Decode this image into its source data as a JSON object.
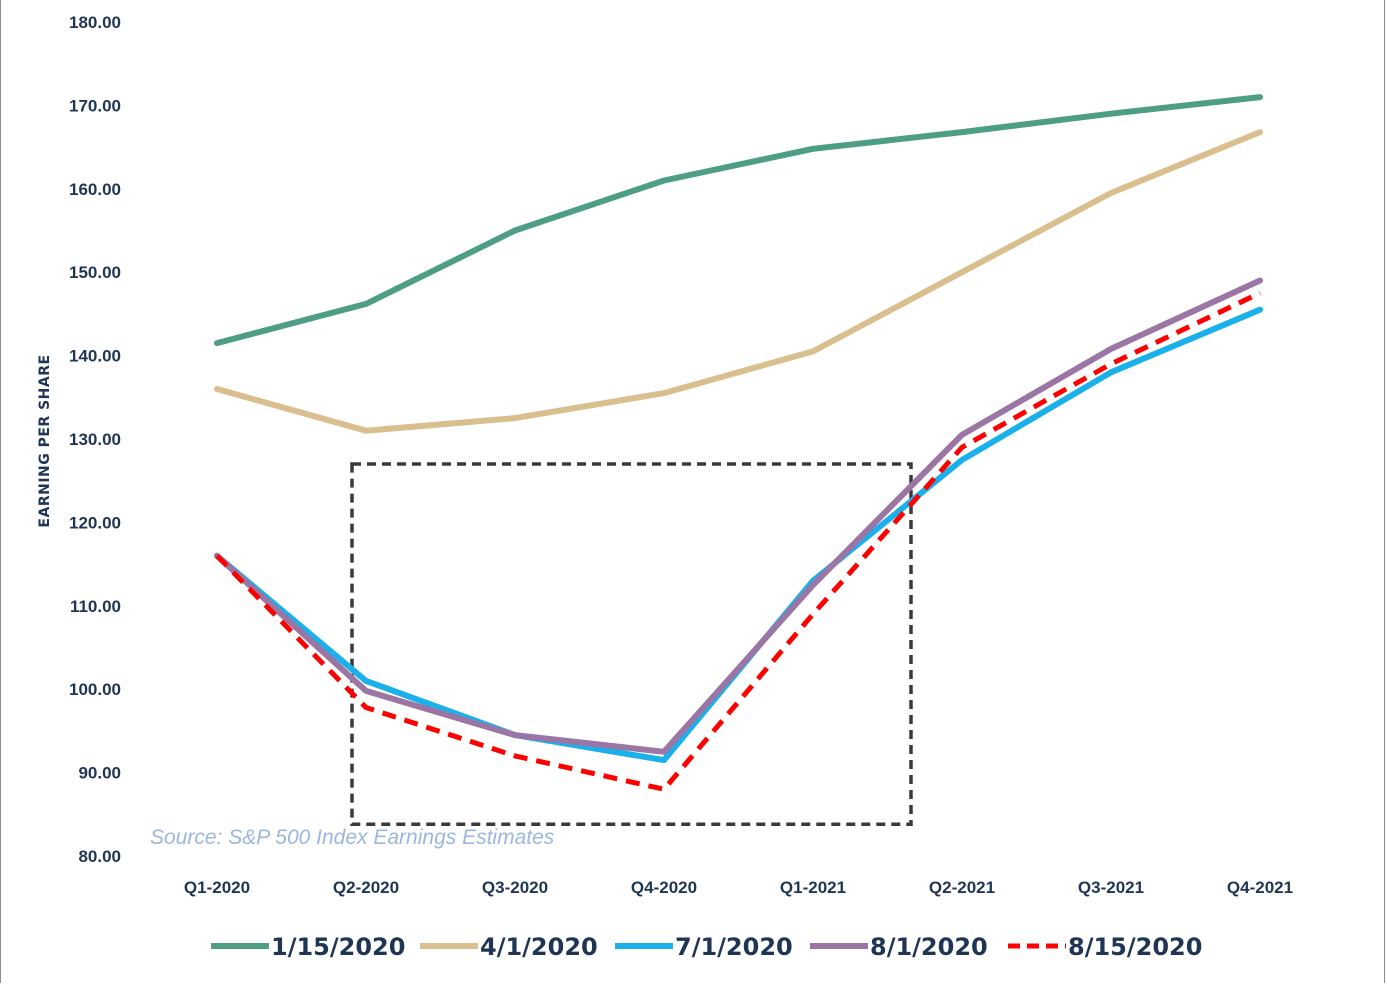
{
  "chart_data": {
    "type": "line",
    "title": "",
    "xlabel": "",
    "ylabel": "EARNING PER SHARE",
    "categories": [
      "Q1-2020",
      "Q2-2020",
      "Q3-2020",
      "Q4-2020",
      "Q1-2021",
      "Q2-2021",
      "Q3-2021",
      "Q4-2021"
    ],
    "yticks": [
      "80.00",
      "90.00",
      "100.00",
      "110.00",
      "120.00",
      "130.00",
      "140.00",
      "150.00",
      "160.00",
      "170.00",
      "180.00"
    ],
    "ylim": [
      80,
      180
    ],
    "grid": false,
    "legend_position": "bottom",
    "series": [
      {
        "name": "1/15/2020",
        "color": "#4e9e84",
        "dashed": false,
        "values": [
          141.5,
          146.2,
          155.0,
          161.0,
          164.8,
          166.8,
          169.0,
          171.0
        ]
      },
      {
        "name": "4/1/2020",
        "color": "#d9bf8e",
        "dashed": false,
        "values": [
          136.0,
          131.0,
          132.5,
          135.5,
          140.5,
          150.0,
          159.5,
          166.8
        ]
      },
      {
        "name": "7/1/2020",
        "color": "#1ab0ea",
        "dashed": false,
        "values": [
          116.0,
          101.0,
          94.5,
          91.5,
          113.0,
          127.5,
          138.0,
          145.5
        ]
      },
      {
        "name": "8/1/2020",
        "color": "#9b75a3",
        "dashed": false,
        "values": [
          116.0,
          99.8,
          94.5,
          92.5,
          112.5,
          130.5,
          140.8,
          149.0
        ]
      },
      {
        "name": "8/15/2020",
        "color": "#ff0000",
        "dashed": true,
        "values": [
          116.0,
          97.8,
          92.0,
          88.0,
          109.0,
          129.0,
          139.0,
          147.5
        ]
      }
    ],
    "annotations": [
      {
        "type": "dashed-box",
        "x_from": "Q2-2020",
        "x_to": "Q2-2021",
        "y_from": 83.8,
        "y_to": 127.0,
        "color": "#3a3a3a"
      }
    ],
    "source": "Source: S&P 500 Index Earnings Estimates"
  }
}
